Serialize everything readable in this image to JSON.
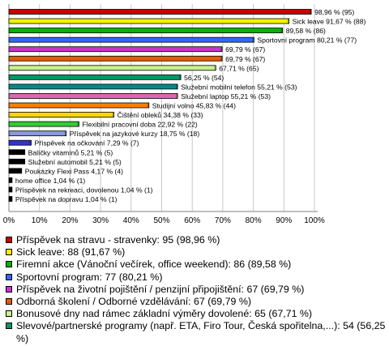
{
  "chart_data": {
    "type": "bar",
    "orientation": "horizontal",
    "grid": true,
    "xlim": [
      0,
      100
    ],
    "x_ticks": [
      "0%",
      "10%",
      "20%",
      "30%",
      "40%",
      "50%",
      "60%",
      "70%",
      "80%",
      "90%",
      "100%"
    ],
    "series": [
      {
        "label": "98,96 % (95)",
        "value": 98.96,
        "color": "#cc0000"
      },
      {
        "label": "Sick leave 91,67 % (88)",
        "value": 91.67,
        "color": "#f2f200"
      },
      {
        "label": "89,58 % (86)",
        "value": 89.58,
        "color": "#00b300"
      },
      {
        "label": "Sportovní program 80,21 % (77)",
        "value": 80.21,
        "color": "#3366ff"
      },
      {
        "label": "69,79 % (67)",
        "value": 69.79,
        "color": "#cc33cc"
      },
      {
        "label": "69,79 % (67)",
        "value": 69.79,
        "color": "#e65c00"
      },
      {
        "label": "67,71 % (65)",
        "value": 67.71,
        "color": "#c8f08c"
      },
      {
        "label": "56,25 % (54)",
        "value": 56.25,
        "color": "#009966"
      },
      {
        "label": "Služební mobilní telefon 55,21 % (53)",
        "value": 55.21,
        "color": "#008b8b"
      },
      {
        "label": "Služební laptop 55,21 % (53)",
        "value": 55.21,
        "color": "#e066b3"
      },
      {
        "label": "Studijní volno 45,83 % (44)",
        "value": 45.83,
        "color": "#ff7f00"
      },
      {
        "label": "Čištění obleků 34,38 % (33)",
        "value": 34.38,
        "color": "#ffd700"
      },
      {
        "label": "Flexibilní pracovní doba 22,92 % (22)",
        "value": 22.92,
        "color": "#33cc33"
      },
      {
        "label": "Příspěvek na jazykové kurzy 18,75 % (18)",
        "value": 18.75,
        "color": "#8a9ad6"
      },
      {
        "label": "Příspěvek na očkování 7,29 % (7)",
        "value": 7.29,
        "color": "#3333cc"
      },
      {
        "label": "Balíčky vitamínů 5,21 % (5)",
        "value": 5.21,
        "color": "#000000"
      },
      {
        "label": "Služební automobil 5,21 % (5)",
        "value": 5.21,
        "color": "#000000"
      },
      {
        "label": "Poukázky Flexi Pass 4,17 % (4)",
        "value": 4.17,
        "color": "#000000"
      },
      {
        "label": "home office 1,04 % (1)",
        "value": 1.04,
        "color": "#000000"
      },
      {
        "label": "Příspěvek na rekreaci, dovolenou 1,04 % (1)",
        "value": 1.04,
        "color": "#000000"
      },
      {
        "label": "Příspěvek na dopravu 1,04 % (1)",
        "value": 1.04,
        "color": "#000000"
      }
    ]
  },
  "legend": [
    {
      "text": "Příspěvek na stravu - stravenky: 95 (98,96 %)",
      "color": "#cc0000"
    },
    {
      "text": "Sick leave: 88 (91,67 %)",
      "color": "#f2f200"
    },
    {
      "text": "Firemní akce (Vánoční večírek, office weekend): 86 (89,58 %)",
      "color": "#00b300"
    },
    {
      "text": "Sportovní program: 77 (80,21 %)",
      "color": "#3366ff"
    },
    {
      "text": "Příspěvek na životní pojištění / penzijní připojištění: 67 (69,79 %)",
      "color": "#cc33cc"
    },
    {
      "text": "Odborná školení / Odborné vzdělávání: 67 (69,79 %)",
      "color": "#e65c00"
    },
    {
      "text": "Bonusové dny nad rámec základní výměry dovolené: 65 (67,71 %)",
      "color": "#c8f08c"
    },
    {
      "text": "Slevové/partnerské programy (např. ETA, Firo Tour, Česká spořitelna,...): 54 (56,25 %)",
      "color": "#009966"
    }
  ]
}
